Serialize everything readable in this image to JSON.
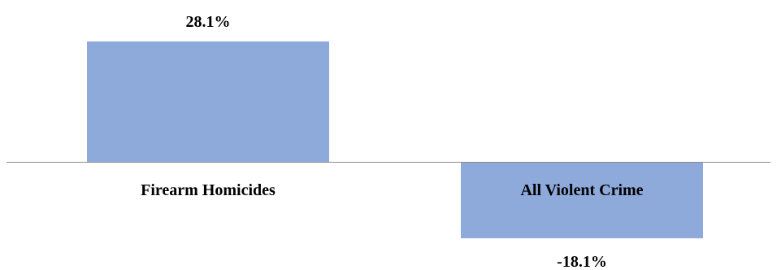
{
  "chart_data": {
    "type": "bar",
    "categories": [
      "Firearm Homicides",
      "All Violent Crime"
    ],
    "values": [
      28.1,
      -18.1
    ],
    "data_labels": [
      "28.1%",
      "-18.1%"
    ],
    "title": "",
    "xlabel": "",
    "ylabel": "",
    "ylim": [
      -18.1,
      28.1
    ],
    "grid": false,
    "legend": "none",
    "bar_color": "#8EAADB",
    "axis_color": "#8C8C8C"
  }
}
